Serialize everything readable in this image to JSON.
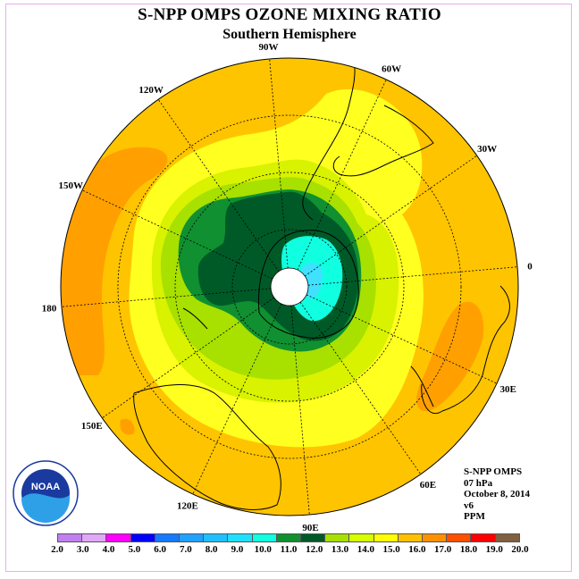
{
  "title": "S-NPP OMPS OZONE MIXING RATIO",
  "subtitle": "Southern Hemisphere",
  "info": {
    "instrument": "S-NPP OMPS",
    "level": "07 hPa",
    "date": "October 8, 2014",
    "version": "v6",
    "units": "PPM"
  },
  "logo": {
    "text": "NOAA",
    "ring_text": "NATIONAL OCEANIC AND ATMOSPHERIC ADMINISTRATION · U.S. DEPARTMENT OF COMMERCE"
  },
  "longitude_labels": [
    {
      "text": "90W",
      "angle": 90
    },
    {
      "text": "60W",
      "angle": 60
    },
    {
      "text": "30W",
      "angle": 30
    },
    {
      "text": "0",
      "angle": 0
    },
    {
      "text": "30E",
      "angle": -30
    },
    {
      "text": "60E",
      "angle": -60
    },
    {
      "text": "90E",
      "angle": -90
    },
    {
      "text": "120E",
      "angle": -120
    },
    {
      "text": "150E",
      "angle": -150
    },
    {
      "text": "180",
      "angle": 180
    },
    {
      "text": "150W",
      "angle": 150
    },
    {
      "text": "120W",
      "angle": 120
    }
  ],
  "colorbar": {
    "labels": [
      "2.0",
      "3.0",
      "4.0",
      "5.0",
      "6.0",
      "7.0",
      "8.0",
      "9.0",
      "10.0",
      "11.0",
      "12.0",
      "13.0",
      "14.0",
      "15.0",
      "16.0",
      "17.0",
      "18.0",
      "19.0",
      "20.0"
    ],
    "colors": [
      "#c080f0",
      "#e0a8f8",
      "#ff00ff",
      "#0000ff",
      "#1878ff",
      "#20a0ff",
      "#20c0ff",
      "#20e0ff",
      "#10ffe0",
      "#109030",
      "#005a28",
      "#a8e000",
      "#d8ff00",
      "#ffff00",
      "#ffc000",
      "#ff9000",
      "#ff5000",
      "#ff0000",
      "#806040"
    ]
  },
  "colors": {
    "outer": "#ffc400",
    "orange": "#ffa000",
    "yellow": "#ffff20",
    "light_yellow_green": "#d8f200",
    "yellow_green": "#a8e000",
    "green": "#109030",
    "dark_green": "#005a28",
    "cyan": "#10ffe0",
    "light_cyan": "#40e0ff"
  }
}
